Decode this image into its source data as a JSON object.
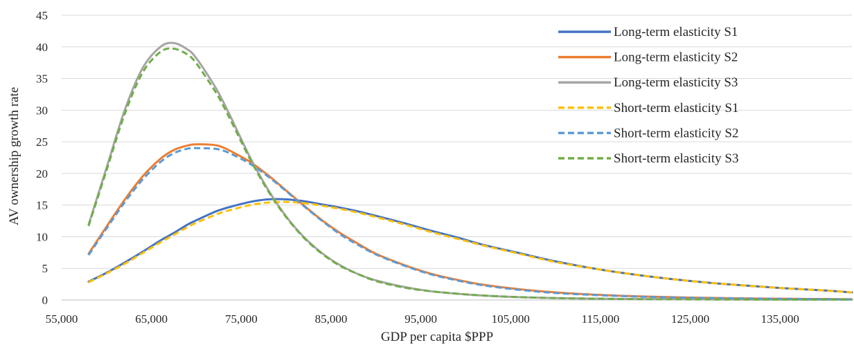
{
  "chart_data": {
    "type": "line",
    "title": "",
    "xlabel": "GDP per capita $PPP",
    "ylabel": "AV ownership growth rate",
    "xlim": [
      55000,
      143000
    ],
    "ylim": [
      0,
      45
    ],
    "x_ticks": [
      55000,
      65000,
      75000,
      85000,
      95000,
      105000,
      115000,
      125000,
      135000
    ],
    "x_tick_labels": [
      "55,000",
      "65,000",
      "75,000",
      "85,000",
      "95,000",
      "105,000",
      "115,000",
      "125,000",
      "135,000"
    ],
    "y_ticks": [
      0,
      5,
      10,
      15,
      20,
      25,
      30,
      35,
      40,
      45
    ],
    "y_tick_labels": [
      "0",
      "5",
      "10",
      "15",
      "20",
      "25",
      "30",
      "35",
      "40",
      "45"
    ],
    "grid": "horizontal",
    "legend_position": "right",
    "x": [
      58000,
      60000,
      62000,
      64000,
      66000,
      67500,
      69000,
      70000,
      72000,
      73000,
      74000,
      76000,
      78000,
      80000,
      82000,
      84000,
      86000,
      88000,
      90000,
      93000,
      96000,
      99000,
      102000,
      106000,
      110000,
      115000,
      120000,
      125000,
      130000,
      135000,
      140000,
      143000
    ],
    "series": [
      {
        "name": "Long-term elasticity S1",
        "color": "#4472C4",
        "dash": "solid",
        "values": [
          2.9,
          4.3,
          5.9,
          7.6,
          9.4,
          10.6,
          11.9,
          12.6,
          13.9,
          14.4,
          14.8,
          15.5,
          15.9,
          15.9,
          15.6,
          15.1,
          14.6,
          14.0,
          13.3,
          12.2,
          11.0,
          9.9,
          8.7,
          7.4,
          6.1,
          4.8,
          3.8,
          3.0,
          2.4,
          1.9,
          1.5,
          1.2
        ]
      },
      {
        "name": "Long-term elasticity S2",
        "color": "#ED7D31",
        "dash": "solid",
        "values": [
          7.3,
          11.6,
          15.8,
          19.5,
          22.3,
          23.7,
          24.4,
          24.6,
          24.5,
          24.1,
          23.4,
          21.8,
          19.7,
          17.3,
          14.9,
          12.6,
          10.6,
          8.9,
          7.3,
          5.6,
          4.2,
          3.2,
          2.4,
          1.7,
          1.2,
          0.8,
          0.55,
          0.38,
          0.28,
          0.2,
          0.15,
          0.12
        ]
      },
      {
        "name": "Long-term elasticity S3",
        "color": "#A5A5A5",
        "dash": "solid",
        "values": [
          11.9,
          20.9,
          29.9,
          36.6,
          40.0,
          40.6,
          39.6,
          38.2,
          33.9,
          31.3,
          28.4,
          22.5,
          17.4,
          13.2,
          9.9,
          7.4,
          5.5,
          4.1,
          3.1,
          2.1,
          1.4,
          1.0,
          0.7,
          0.45,
          0.3,
          0.2,
          0.13,
          0.1,
          0.08,
          0.06,
          0.05,
          0.05
        ]
      },
      {
        "name": "Short-term elasticity S1",
        "color": "#FFC000",
        "dash": "dashed",
        "values": [
          2.8,
          4.2,
          5.7,
          7.4,
          9.1,
          10.3,
          11.5,
          12.2,
          13.4,
          13.9,
          14.3,
          15.0,
          15.4,
          15.5,
          15.3,
          14.9,
          14.4,
          13.8,
          13.1,
          12.0,
          10.8,
          9.7,
          8.6,
          7.3,
          6.0,
          4.8,
          3.8,
          3.0,
          2.4,
          1.9,
          1.5,
          1.2
        ]
      },
      {
        "name": "Short-term elasticity S2",
        "color": "#5B9BD5",
        "dash": "dashed",
        "values": [
          7.1,
          11.3,
          15.4,
          19.0,
          21.8,
          23.2,
          23.9,
          24.0,
          23.9,
          23.6,
          23.0,
          21.5,
          19.5,
          17.2,
          14.8,
          12.5,
          10.4,
          8.7,
          7.2,
          5.5,
          4.1,
          3.1,
          2.3,
          1.6,
          1.1,
          0.75,
          0.5,
          0.36,
          0.26,
          0.19,
          0.14,
          0.11
        ]
      },
      {
        "name": "Short-term elasticity S3",
        "color": "#70AD47",
        "dash": "dashed",
        "values": [
          11.7,
          20.5,
          29.3,
          35.9,
          39.2,
          39.7,
          38.8,
          37.4,
          33.2,
          30.7,
          27.9,
          22.2,
          17.2,
          13.1,
          9.8,
          7.3,
          5.4,
          4.1,
          3.0,
          2.0,
          1.4,
          1.0,
          0.7,
          0.45,
          0.3,
          0.2,
          0.13,
          0.1,
          0.08,
          0.06,
          0.05,
          0.05
        ]
      }
    ]
  }
}
